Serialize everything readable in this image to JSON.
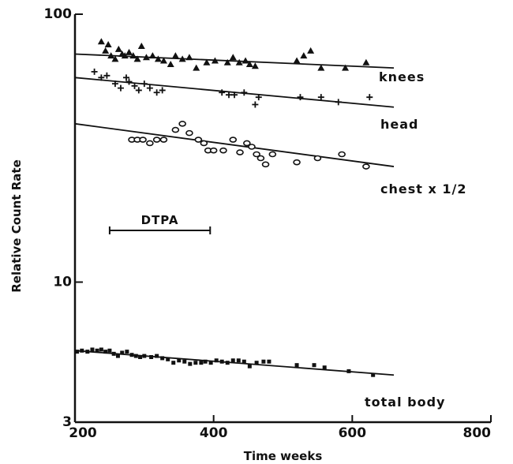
{
  "chart_data": {
    "type": "scatter",
    "title": "",
    "xlabel": "Time   weeks",
    "ylabel": "Relative Count Rate",
    "xlim": [
      200,
      800
    ],
    "ylim": [
      3,
      100
    ],
    "yscale": "log",
    "grid": false,
    "x_ticks": [
      200,
      400,
      600,
      800
    ],
    "y_ticks": [
      3,
      10,
      100
    ],
    "annotation": {
      "label": "DTPA",
      "x_start": 250,
      "x_end": 395
    },
    "series": [
      {
        "name": "knees",
        "marker": "triangle",
        "fit": [
          [
            200,
            71
          ],
          [
            660,
            63
          ]
        ],
        "points": [
          [
            238,
            79
          ],
          [
            244,
            73
          ],
          [
            248,
            77
          ],
          [
            252,
            70
          ],
          [
            258,
            68
          ],
          [
            263,
            74
          ],
          [
            268,
            71
          ],
          [
            272,
            70
          ],
          [
            278,
            72
          ],
          [
            284,
            70
          ],
          [
            290,
            68
          ],
          [
            296,
            76
          ],
          [
            303,
            69
          ],
          [
            312,
            70
          ],
          [
            320,
            68
          ],
          [
            328,
            67
          ],
          [
            338,
            65
          ],
          [
            345,
            70
          ],
          [
            355,
            68
          ],
          [
            365,
            69
          ],
          [
            375,
            63
          ],
          [
            390,
            66
          ],
          [
            402,
            67
          ],
          [
            420,
            66
          ],
          [
            428,
            69
          ],
          [
            437,
            66
          ],
          [
            446,
            67
          ],
          [
            452,
            65
          ],
          [
            460,
            64
          ],
          [
            520,
            67
          ],
          [
            530,
            70
          ],
          [
            540,
            73
          ],
          [
            555,
            63
          ],
          [
            590,
            63
          ],
          [
            620,
            66
          ]
        ]
      },
      {
        "name": "head",
        "marker": "plus",
        "fit": [
          [
            200,
            58
          ],
          [
            660,
            45
          ]
        ],
        "points": [
          [
            228,
            61
          ],
          [
            238,
            58
          ],
          [
            246,
            59
          ],
          [
            258,
            55
          ],
          [
            266,
            53
          ],
          [
            274,
            58
          ],
          [
            278,
            56
          ],
          [
            286,
            54
          ],
          [
            292,
            52
          ],
          [
            300,
            55
          ],
          [
            308,
            53
          ],
          [
            318,
            51
          ],
          [
            326,
            52
          ],
          [
            412,
            51
          ],
          [
            422,
            50
          ],
          [
            430,
            50
          ],
          [
            444,
            51
          ],
          [
            460,
            46
          ],
          [
            465,
            49
          ],
          [
            525,
            49
          ],
          [
            555,
            49
          ],
          [
            580,
            47
          ],
          [
            625,
            49
          ]
        ]
      },
      {
        "name": "chest   x 1/2",
        "marker": "circle",
        "fit": [
          [
            200,
            39
          ],
          [
            660,
            27
          ]
        ],
        "points": [
          [
            282,
            34
          ],
          [
            290,
            34
          ],
          [
            298,
            34
          ],
          [
            308,
            33
          ],
          [
            318,
            34
          ],
          [
            328,
            34
          ],
          [
            345,
            37
          ],
          [
            355,
            39
          ],
          [
            365,
            36
          ],
          [
            378,
            34
          ],
          [
            386,
            33
          ],
          [
            392,
            31
          ],
          [
            400,
            31
          ],
          [
            414,
            31
          ],
          [
            428,
            34
          ],
          [
            438,
            30.5
          ],
          [
            448,
            33
          ],
          [
            455,
            32
          ],
          [
            462,
            30
          ],
          [
            468,
            29
          ],
          [
            475,
            27.5
          ],
          [
            485,
            30
          ],
          [
            520,
            28
          ],
          [
            550,
            29
          ],
          [
            585,
            30
          ],
          [
            620,
            27
          ]
        ]
      },
      {
        "name": "total body",
        "marker": "square",
        "fit": [
          [
            200,
            5.55
          ],
          [
            660,
            4.5
          ]
        ],
        "points": [
          [
            203,
            5.5
          ],
          [
            210,
            5.55
          ],
          [
            218,
            5.5
          ],
          [
            225,
            5.6
          ],
          [
            232,
            5.55
          ],
          [
            238,
            5.6
          ],
          [
            244,
            5.5
          ],
          [
            250,
            5.55
          ],
          [
            256,
            5.4
          ],
          [
            262,
            5.3
          ],
          [
            268,
            5.45
          ],
          [
            275,
            5.5
          ],
          [
            282,
            5.35
          ],
          [
            288,
            5.3
          ],
          [
            294,
            5.25
          ],
          [
            300,
            5.3
          ],
          [
            310,
            5.25
          ],
          [
            318,
            5.3
          ],
          [
            326,
            5.2
          ],
          [
            334,
            5.15
          ],
          [
            342,
            5.0
          ],
          [
            350,
            5.1
          ],
          [
            358,
            5.05
          ],
          [
            366,
            4.95
          ],
          [
            374,
            5.0
          ],
          [
            382,
            5.0
          ],
          [
            388,
            5.05
          ],
          [
            396,
            5.0
          ],
          [
            404,
            5.1
          ],
          [
            412,
            5.05
          ],
          [
            420,
            5.0
          ],
          [
            428,
            5.1
          ],
          [
            436,
            5.1
          ],
          [
            444,
            5.05
          ],
          [
            452,
            4.85
          ],
          [
            462,
            5.0
          ],
          [
            472,
            5.05
          ],
          [
            480,
            5.05
          ],
          [
            520,
            4.9
          ],
          [
            545,
            4.9
          ],
          [
            560,
            4.8
          ],
          [
            595,
            4.65
          ],
          [
            630,
            4.5
          ]
        ]
      }
    ]
  }
}
